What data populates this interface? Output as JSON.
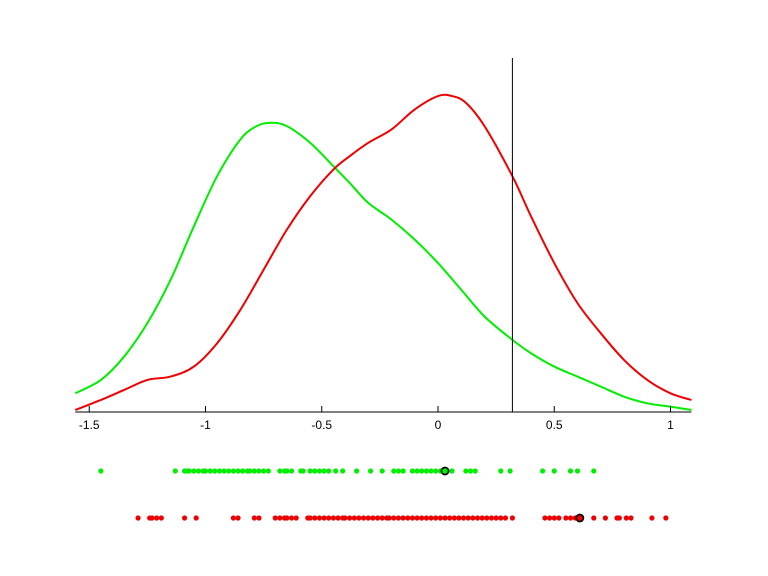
{
  "chart_data": {
    "type": "line",
    "title": "",
    "xlabel": "",
    "ylabel": "",
    "xlim": [
      -1.56,
      1.09
    ],
    "grid": false,
    "legend": null,
    "x_ticks": [
      -1.5,
      -1,
      -0.5,
      0,
      0.5,
      1
    ],
    "x_tick_labels": [
      "-1.5",
      "-1",
      "-0.5",
      "0",
      "0.5",
      "1"
    ],
    "vertical_marker": {
      "x": 0.32,
      "color": "#000000"
    },
    "series": [
      {
        "name": "green density",
        "color": "#00ee00",
        "x": [
          -1.56,
          -1.45,
          -1.35,
          -1.25,
          -1.15,
          -1.05,
          -0.95,
          -0.85,
          -0.78,
          -0.72,
          -0.65,
          -0.55,
          -0.45,
          -0.38,
          -0.3,
          -0.2,
          -0.1,
          0.0,
          0.1,
          0.2,
          0.32,
          0.4,
          0.5,
          0.6,
          0.7,
          0.8,
          0.9,
          1.0,
          1.09
        ],
        "y": [
          0.05,
          0.09,
          0.16,
          0.26,
          0.39,
          0.55,
          0.7,
          0.81,
          0.85,
          0.86,
          0.85,
          0.8,
          0.73,
          0.68,
          0.62,
          0.57,
          0.51,
          0.44,
          0.36,
          0.28,
          0.21,
          0.17,
          0.13,
          0.1,
          0.07,
          0.04,
          0.02,
          0.01,
          0.0
        ]
      },
      {
        "name": "red density",
        "color": "#ee0000",
        "x": [
          -1.56,
          -1.45,
          -1.35,
          -1.25,
          -1.15,
          -1.05,
          -0.95,
          -0.85,
          -0.75,
          -0.65,
          -0.55,
          -0.45,
          -0.38,
          -0.3,
          -0.2,
          -0.1,
          0.0,
          0.06,
          0.12,
          0.2,
          0.32,
          0.4,
          0.5,
          0.6,
          0.7,
          0.8,
          0.9,
          1.0,
          1.09
        ],
        "y": [
          0.0,
          0.03,
          0.06,
          0.09,
          0.1,
          0.13,
          0.2,
          0.3,
          0.42,
          0.54,
          0.64,
          0.72,
          0.76,
          0.8,
          0.84,
          0.9,
          0.94,
          0.94,
          0.92,
          0.85,
          0.7,
          0.58,
          0.44,
          0.32,
          0.23,
          0.15,
          0.09,
          0.05,
          0.03
        ]
      }
    ],
    "rug_plots": [
      {
        "name": "green samples",
        "color": "#00ee00",
        "values": [
          -1.45,
          -1.13,
          -1.09,
          -1.08,
          -1.07,
          -1.05,
          -1.03,
          -1.01,
          -1.0,
          -0.98,
          -0.96,
          -0.94,
          -0.92,
          -0.9,
          -0.88,
          -0.86,
          -0.84,
          -0.82,
          -0.81,
          -0.79,
          -0.77,
          -0.75,
          -0.73,
          -0.68,
          -0.66,
          -0.65,
          -0.63,
          -0.59,
          -0.58,
          -0.55,
          -0.53,
          -0.51,
          -0.49,
          -0.47,
          -0.44,
          -0.41,
          -0.35,
          -0.29,
          -0.24,
          -0.19,
          -0.17,
          -0.15,
          -0.11,
          -0.09,
          -0.07,
          -0.05,
          -0.03,
          -0.01,
          0.01,
          0.04,
          0.06,
          0.12,
          0.14,
          0.16,
          0.27,
          0.31,
          0.45,
          0.5,
          0.57,
          0.6,
          0.67
        ],
        "highlight": 0.03
      },
      {
        "name": "red samples",
        "color": "#ee0000",
        "values": [
          -1.29,
          -1.24,
          -1.23,
          -1.21,
          -1.19,
          -1.09,
          -1.04,
          -0.88,
          -0.86,
          -0.79,
          -0.77,
          -0.7,
          -0.68,
          -0.66,
          -0.65,
          -0.63,
          -0.61,
          -0.56,
          -0.55,
          -0.53,
          -0.51,
          -0.49,
          -0.47,
          -0.45,
          -0.43,
          -0.41,
          -0.4,
          -0.38,
          -0.36,
          -0.34,
          -0.32,
          -0.3,
          -0.28,
          -0.26,
          -0.24,
          -0.22,
          -0.21,
          -0.19,
          -0.17,
          -0.15,
          -0.13,
          -0.11,
          -0.09,
          -0.07,
          -0.05,
          -0.03,
          -0.01,
          0.01,
          0.03,
          0.05,
          0.07,
          0.09,
          0.11,
          0.13,
          0.15,
          0.17,
          0.19,
          0.21,
          0.23,
          0.25,
          0.27,
          0.29,
          0.32,
          0.46,
          0.48,
          0.5,
          0.52,
          0.55,
          0.57,
          0.59,
          0.67,
          0.72,
          0.77,
          0.78,
          0.81,
          0.83,
          0.92,
          0.98
        ],
        "highlight": 0.61
      }
    ]
  }
}
